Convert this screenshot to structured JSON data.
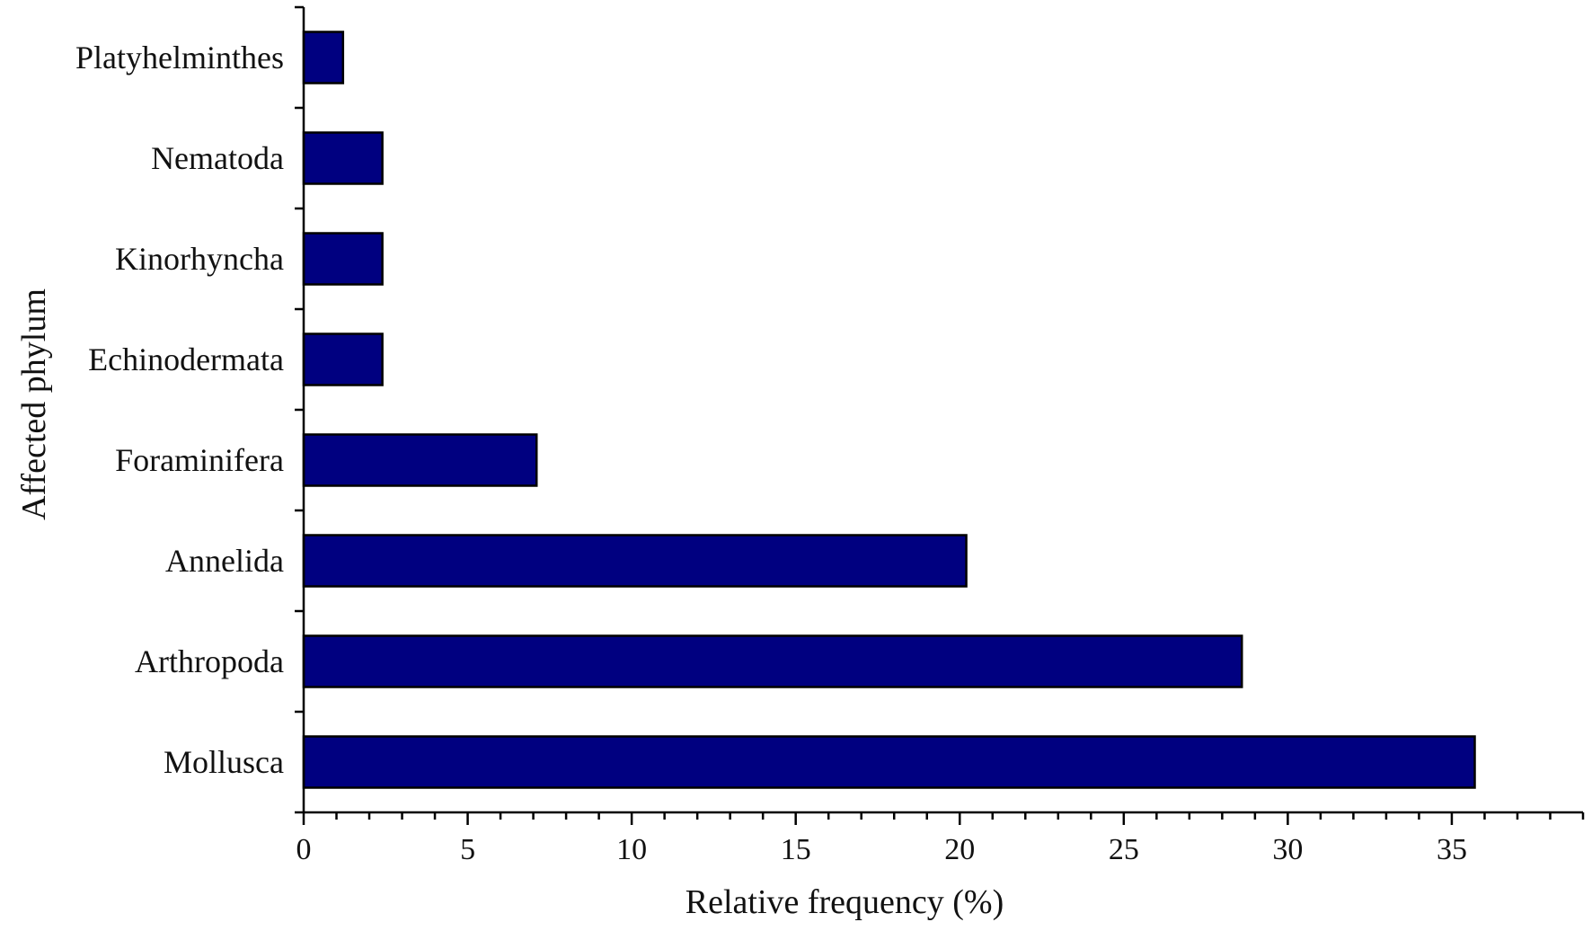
{
  "chart_data": {
    "type": "bar",
    "orientation": "horizontal",
    "categories": [
      "Mollusca",
      "Arthropoda",
      "Annelida",
      "Foraminifera",
      "Echinodermata",
      "Kinorhyncha",
      "Nematoda",
      "Platyhelminthes"
    ],
    "values": [
      35.7,
      28.6,
      20.2,
      7.1,
      2.4,
      2.4,
      2.4,
      1.2
    ],
    "xlabel": "Relative frequency (%)",
    "ylabel": "Affected phylum",
    "xlim": [
      0,
      39
    ],
    "xticks": [
      0,
      5,
      10,
      15,
      20,
      25,
      30,
      35
    ],
    "bar_color": "#000080",
    "grid": false,
    "legend": "none"
  }
}
